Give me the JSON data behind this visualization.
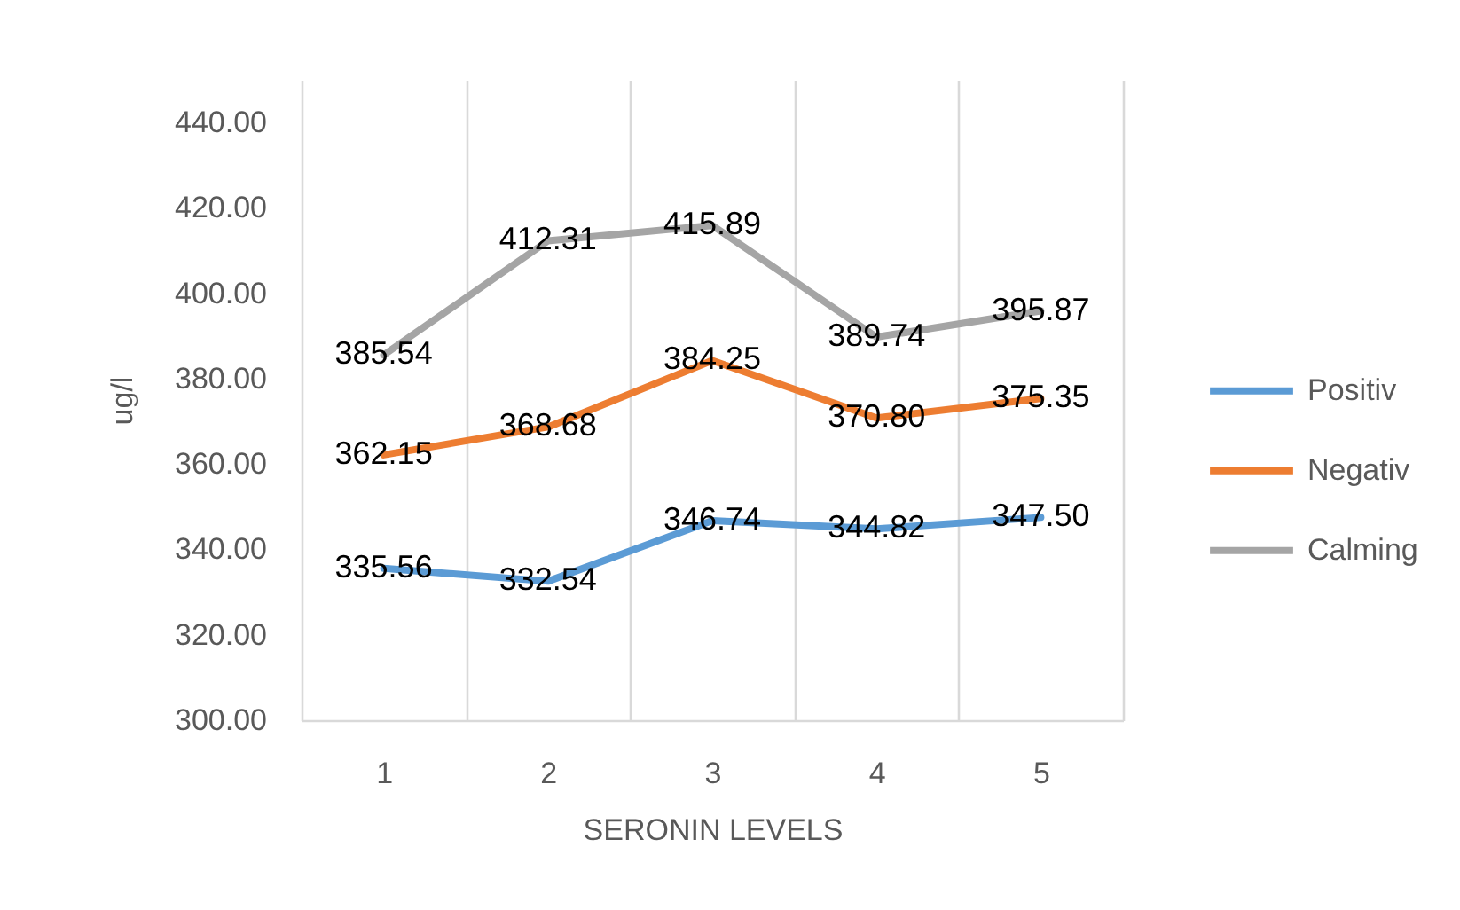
{
  "chart_data": {
    "type": "line",
    "xlabel": "SERONIN LEVELS",
    "ylabel": "ug/l",
    "categories": [
      "1",
      "2",
      "3",
      "4",
      "5"
    ],
    "ylim": [
      300,
      450
    ],
    "yticks": [
      {
        "value": 300,
        "label": "300.00"
      },
      {
        "value": 320,
        "label": "320.00"
      },
      {
        "value": 340,
        "label": "340.00"
      },
      {
        "value": 360,
        "label": "360.00"
      },
      {
        "value": 380,
        "label": "380.00"
      },
      {
        "value": 400,
        "label": "400.00"
      },
      {
        "value": 420,
        "label": "420.00"
      },
      {
        "value": 440,
        "label": "440.00"
      }
    ],
    "grid": "x",
    "legend": "right",
    "series": [
      {
        "name": "Positiv",
        "color": "#5b9bd5",
        "values": [
          335.56,
          332.54,
          346.74,
          344.82,
          347.5
        ],
        "value_labels": [
          "335.56",
          "332.54",
          "346.74",
          "344.82",
          "347.50"
        ]
      },
      {
        "name": "Negativ",
        "color": "#ed7d31",
        "values": [
          362.15,
          368.68,
          384.25,
          370.8,
          375.35
        ],
        "value_labels": [
          "362.15",
          "368.68",
          "384.25",
          "370.80",
          "375.35"
        ]
      },
      {
        "name": "Calming",
        "color": "#a5a5a5",
        "values": [
          385.54,
          412.31,
          415.89,
          389.74,
          395.87
        ],
        "value_labels": [
          "385.54",
          "412.31",
          "415.89",
          "389.74",
          "395.87"
        ]
      }
    ]
  }
}
